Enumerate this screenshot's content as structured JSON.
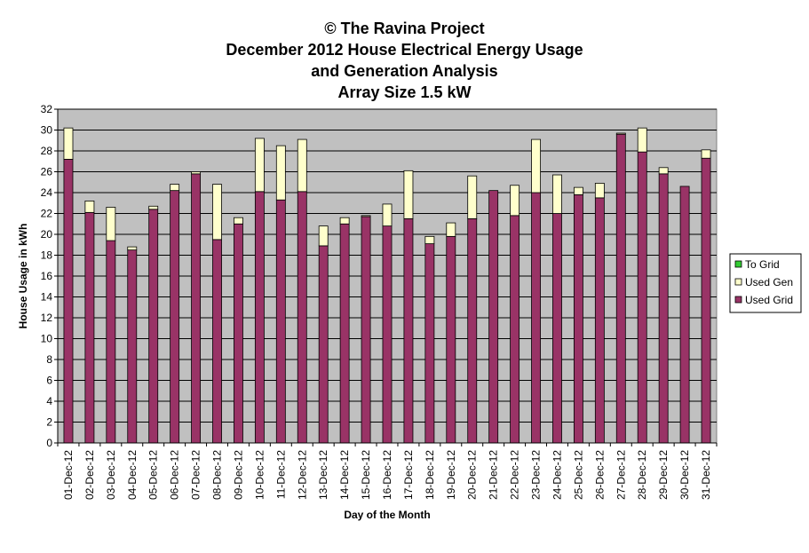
{
  "chart_data": {
    "type": "bar",
    "stacked": true,
    "title_lines": [
      "© The Ravina Project",
      "December 2012 House Electrical Energy Usage",
      "and Generation Analysis",
      "Array Size 1.5 kW"
    ],
    "xlabel": "Day of the Month",
    "ylabel": "House Usage in kWh",
    "ylim": [
      0,
      32
    ],
    "ytick_step": 2,
    "grid": true,
    "legend_position": "right",
    "categories": [
      "01-Dec-12",
      "02-Dec-12",
      "03-Dec-12",
      "04-Dec-12",
      "05-Dec-12",
      "06-Dec-12",
      "07-Dec-12",
      "08-Dec-12",
      "09-Dec-12",
      "10-Dec-12",
      "11-Dec-12",
      "12-Dec-12",
      "13-Dec-12",
      "14-Dec-12",
      "15-Dec-12",
      "16-Dec-12",
      "17-Dec-12",
      "18-Dec-12",
      "19-Dec-12",
      "20-Dec-12",
      "21-Dec-12",
      "22-Dec-12",
      "23-Dec-12",
      "24-Dec-12",
      "25-Dec-12",
      "26-Dec-12",
      "27-Dec-12",
      "28-Dec-12",
      "29-Dec-12",
      "30-Dec-12",
      "31-Dec-12"
    ],
    "series": [
      {
        "name": "Used Grid",
        "color": "#993366",
        "values": [
          27.2,
          22.1,
          19.4,
          18.5,
          22.4,
          24.2,
          25.8,
          19.5,
          21.0,
          24.1,
          23.3,
          24.1,
          18.9,
          21.0,
          21.7,
          20.8,
          21.5,
          19.1,
          19.8,
          21.5,
          24.2,
          21.8,
          24.0,
          22.0,
          23.8,
          23.5,
          29.6,
          27.9,
          25.8,
          24.6,
          27.3
        ]
      },
      {
        "name": "Used Gen",
        "color": "#FFFFCC",
        "values": [
          3.0,
          1.1,
          3.2,
          0.3,
          0.3,
          0.6,
          0.2,
          5.3,
          0.6,
          5.1,
          5.2,
          5.0,
          1.9,
          0.6,
          0.1,
          2.1,
          4.6,
          0.7,
          1.3,
          4.1,
          0.0,
          2.9,
          5.1,
          3.7,
          0.7,
          1.4,
          0.1,
          2.3,
          0.6,
          0.0,
          0.8
        ]
      },
      {
        "name": "To Grid",
        "color": "#33CC33",
        "values": [
          0,
          0,
          0,
          0,
          0,
          0,
          0,
          0,
          0,
          0,
          0,
          0,
          0,
          0,
          0,
          0,
          0,
          0,
          0,
          0,
          0,
          0,
          0,
          0,
          0,
          0,
          0,
          0,
          0,
          0,
          0
        ]
      }
    ],
    "legend_order": [
      "To Grid",
      "Used Gen",
      "Used Grid"
    ],
    "colors": {
      "plot_background": "#C0C0C0",
      "gridline": "#000000",
      "bar_outline": "#000000"
    }
  }
}
